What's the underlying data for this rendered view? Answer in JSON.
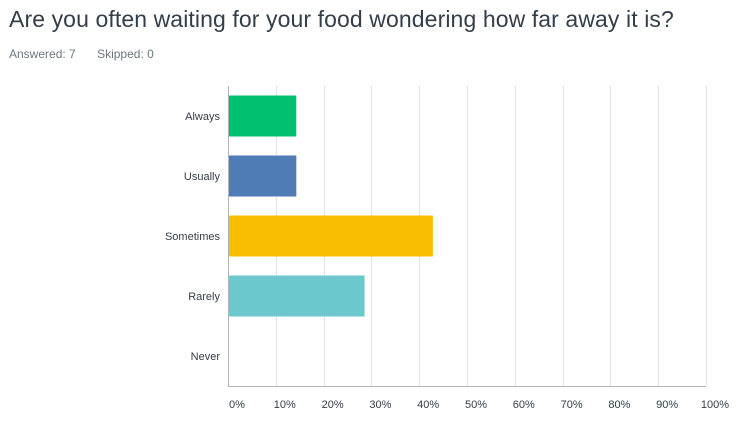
{
  "question": {
    "title": "Are you often waiting for your food wondering how far away it is?"
  },
  "stats": {
    "answered_label": "Answered:",
    "answered_value": "7",
    "skipped_label": "Skipped:",
    "skipped_value": "0"
  },
  "chart_data": {
    "type": "bar",
    "orientation": "horizontal",
    "title": "",
    "xlabel": "",
    "ylabel": "",
    "categories": [
      "Always",
      "Usually",
      "Sometimes",
      "Rarely",
      "Never"
    ],
    "values": [
      14.29,
      14.29,
      42.86,
      28.57,
      0
    ],
    "colors": [
      "#00bf6f",
      "#507cb6",
      "#f9be00",
      "#6bc8cd",
      "#cccccc"
    ],
    "xlim": [
      0,
      100
    ],
    "ticks": [
      0,
      10,
      20,
      30,
      40,
      50,
      60,
      70,
      80,
      90,
      100
    ],
    "tick_labels": [
      "0%",
      "10%",
      "20%",
      "30%",
      "40%",
      "50%",
      "60%",
      "70%",
      "80%",
      "90%",
      "100%"
    ],
    "grid": true,
    "legend": "none"
  }
}
